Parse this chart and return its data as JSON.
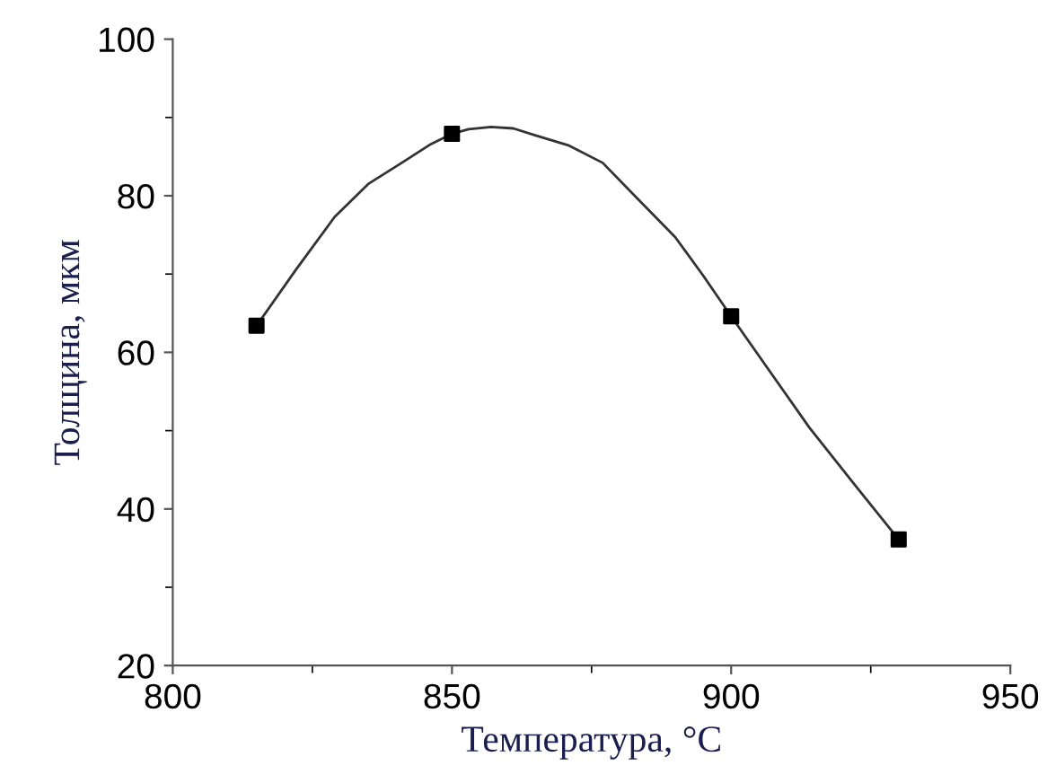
{
  "chart_data": {
    "type": "scatter",
    "xlabel": "Температура, °C",
    "ylabel": "Толщина, мкм",
    "xlim": [
      800,
      950
    ],
    "ylim": [
      20,
      100
    ],
    "xticks": [
      800,
      850,
      900,
      950
    ],
    "yticks": [
      20,
      40,
      60,
      80,
      100
    ],
    "grid": false,
    "legend": false,
    "series": [
      {
        "type": "line",
        "color": "#333333",
        "marker": "none",
        "x": [
          815,
          822,
          829,
          835,
          841,
          846,
          850,
          853,
          857,
          861,
          865,
          871,
          877,
          883,
          890,
          895,
          900,
          907,
          914,
          922,
          930
        ],
        "values": [
          63.4,
          70.5,
          77.3,
          81.5,
          84.2,
          86.5,
          87.9,
          88.5,
          88.8,
          88.6,
          87.7,
          86.4,
          84.2,
          79.8,
          74.7,
          69.8,
          64.6,
          57.5,
          50.4,
          43.2,
          36.1
        ]
      },
      {
        "color": "#000000",
        "marker": "square",
        "x": [
          815,
          850,
          900,
          930
        ],
        "values": [
          63.4,
          87.9,
          64.6,
          36.1
        ]
      }
    ]
  }
}
